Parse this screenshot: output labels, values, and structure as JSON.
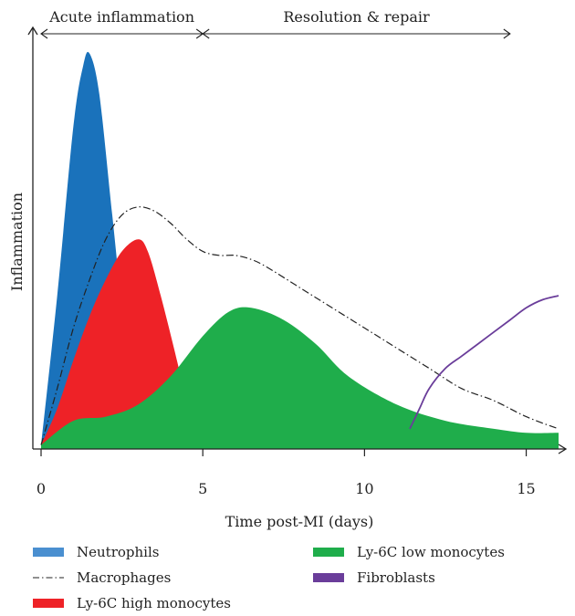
{
  "chart_data": {
    "type": "area",
    "xlabel": "Time post-MI (days)",
    "ylabel": "Inflammation",
    "xlim": [
      0,
      16
    ],
    "ylim": [
      0,
      1
    ],
    "x_ticks": [
      0,
      5,
      10,
      15
    ],
    "grid": false,
    "legend_position": "bottom",
    "phases": [
      {
        "label": "Acute inflammation",
        "x_start": 0,
        "x_end": 5
      },
      {
        "label": "Resolution & repair",
        "x_start": 5,
        "x_end": 14.5
      }
    ],
    "series": [
      {
        "name": "Neutrophils",
        "style": "filled",
        "color": "#1a72bb",
        "x": [
          0,
          0.5,
          1.0,
          1.3,
          1.5,
          1.8,
          2.2,
          2.6,
          3.0,
          3.1
        ],
        "y": [
          0.01,
          0.38,
          0.8,
          0.95,
          0.98,
          0.88,
          0.58,
          0.28,
          0.09,
          0.02
        ]
      },
      {
        "name": "Ly-6C high monocytes",
        "style": "filled",
        "color": "#ee2227",
        "x": [
          0,
          0.5,
          1.0,
          1.5,
          2.0,
          2.5,
          3.0,
          3.3,
          3.7,
          4.2,
          4.6,
          5.0
        ],
        "y": [
          0.01,
          0.1,
          0.22,
          0.33,
          0.42,
          0.49,
          0.52,
          0.49,
          0.38,
          0.22,
          0.08,
          0.01
        ]
      },
      {
        "name": "Ly-6C low monocytes",
        "style": "filled",
        "color": "#1fad4b",
        "x": [
          0,
          1.0,
          2.0,
          3.0,
          4.0,
          5.0,
          5.8,
          6.5,
          7.5,
          8.5,
          9.5,
          11.0,
          12.5,
          14.0,
          15.0,
          16.0
        ],
        "y": [
          0.01,
          0.07,
          0.08,
          0.11,
          0.18,
          0.28,
          0.34,
          0.35,
          0.32,
          0.26,
          0.18,
          0.11,
          0.07,
          0.05,
          0.04,
          0.04
        ]
      },
      {
        "name": "Macrophages",
        "style": "dashdot",
        "color": "#222222",
        "x": [
          0,
          0.5,
          1.0,
          1.5,
          2.0,
          2.5,
          3.0,
          3.5,
          4.0,
          4.5,
          5.0,
          5.5,
          6.0,
          6.5,
          7.0,
          8.0,
          9.0,
          10.0,
          11.0,
          12.0,
          13.0,
          14.0,
          15.0,
          16.0
        ],
        "y": [
          0.01,
          0.15,
          0.3,
          0.42,
          0.52,
          0.58,
          0.6,
          0.59,
          0.56,
          0.52,
          0.49,
          0.48,
          0.48,
          0.47,
          0.45,
          0.4,
          0.35,
          0.3,
          0.25,
          0.2,
          0.15,
          0.12,
          0.08,
          0.05
        ]
      },
      {
        "name": "Fibroblasts",
        "style": "line",
        "color": "#6a3d9a",
        "x": [
          11.4,
          11.7,
          12.0,
          12.5,
          13.0,
          13.5,
          14.0,
          14.5,
          15.0,
          15.5,
          16.0
        ],
        "y": [
          0.05,
          0.1,
          0.15,
          0.2,
          0.23,
          0.26,
          0.29,
          0.32,
          0.35,
          0.37,
          0.38
        ]
      }
    ]
  },
  "legend": {
    "items": [
      {
        "label": "Neutrophils",
        "color": "#4a8fd0",
        "style": "box"
      },
      {
        "label": "Macrophages",
        "color": "#222222",
        "style": "dashdot"
      },
      {
        "label": "Ly-6C high monocytes",
        "color": "#ee2227",
        "style": "box"
      },
      {
        "label": "Ly-6C low monocytes",
        "color": "#1fad4b",
        "style": "box"
      },
      {
        "label": "Fibroblasts",
        "color": "#6a3d9a",
        "style": "box"
      }
    ]
  }
}
